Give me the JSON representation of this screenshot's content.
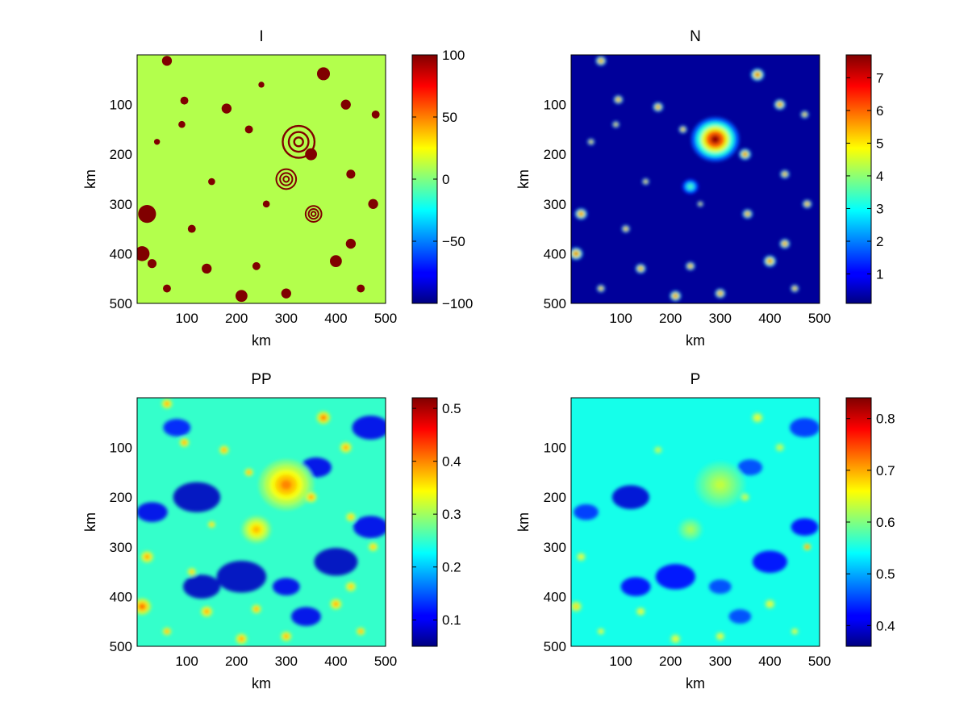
{
  "chart_data": [
    {
      "type": "heatmap",
      "title": "I",
      "xlabel": "km",
      "ylabel": "km",
      "xlim": [
        0,
        500
      ],
      "ylim": [
        500,
        0
      ],
      "x_ticks": [
        "100",
        "200",
        "300",
        "400",
        "500"
      ],
      "y_ticks": [
        "100",
        "200",
        "300",
        "400",
        "500"
      ],
      "colorbar": {
        "min": -100,
        "max": 100,
        "ticks": [
          "100",
          "50",
          "0",
          "−50",
          "−100"
        ]
      },
      "colormap": "jet",
      "pattern": "binary",
      "background_value": 10,
      "feature_value": 100,
      "features": [
        [
          325,
          175,
          32,
          "ring"
        ],
        [
          375,
          38,
          13
        ],
        [
          60,
          12,
          10
        ],
        [
          95,
          92,
          8
        ],
        [
          420,
          100,
          10
        ],
        [
          180,
          108,
          10
        ],
        [
          225,
          150,
          8
        ],
        [
          40,
          175,
          6
        ],
        [
          350,
          200,
          12
        ],
        [
          300,
          250,
          20,
          "ring"
        ],
        [
          355,
          320,
          16,
          "ring"
        ],
        [
          20,
          320,
          18
        ],
        [
          10,
          400,
          15
        ],
        [
          140,
          430,
          10
        ],
        [
          240,
          425,
          8
        ],
        [
          400,
          415,
          12
        ],
        [
          430,
          380,
          10
        ],
        [
          210,
          485,
          12
        ],
        [
          300,
          480,
          10
        ],
        [
          475,
          300,
          10
        ],
        [
          480,
          120,
          8
        ],
        [
          110,
          350,
          8
        ],
        [
          260,
          300,
          7
        ],
        [
          450,
          470,
          8
        ],
        [
          150,
          255,
          7
        ],
        [
          60,
          470,
          8
        ],
        [
          430,
          240,
          9
        ],
        [
          90,
          140,
          7
        ],
        [
          250,
          60,
          6
        ],
        [
          30,
          420,
          9
        ]
      ]
    },
    {
      "type": "heatmap",
      "title": "N",
      "xlabel": "km",
      "ylabel": "km",
      "xlim": [
        0,
        500
      ],
      "ylim": [
        500,
        0
      ],
      "x_ticks": [
        "100",
        "200",
        "300",
        "400",
        "500"
      ],
      "y_ticks": [
        "100",
        "200",
        "300",
        "400",
        "500"
      ],
      "colorbar": {
        "min": 0.1,
        "max": 7.7,
        "ticks": [
          "7",
          "6",
          "5",
          "4",
          "3",
          "2",
          "1"
        ]
      },
      "colormap": "jet",
      "pattern": "eddies-on-low-background",
      "background_value": 0.3,
      "features": [
        [
          290,
          170,
          48,
          7.5
        ],
        [
          375,
          40,
          13,
          7.2
        ],
        [
          60,
          12,
          10,
          7.2
        ],
        [
          95,
          90,
          9,
          7
        ],
        [
          420,
          100,
          11,
          7
        ],
        [
          175,
          105,
          10,
          6.8
        ],
        [
          225,
          150,
          8,
          6.8
        ],
        [
          40,
          175,
          7,
          6.5
        ],
        [
          350,
          200,
          12,
          6.5
        ],
        [
          240,
          265,
          16,
          3.5
        ],
        [
          355,
          320,
          10,
          6.5
        ],
        [
          20,
          320,
          12,
          6.8
        ],
        [
          10,
          400,
          13,
          7.2
        ],
        [
          140,
          430,
          10,
          7
        ],
        [
          240,
          425,
          9,
          6.8
        ],
        [
          400,
          415,
          12,
          7
        ],
        [
          430,
          380,
          10,
          6.8
        ],
        [
          210,
          485,
          11,
          7
        ],
        [
          300,
          480,
          10,
          7
        ],
        [
          475,
          300,
          9,
          6.8
        ],
        [
          470,
          120,
          8,
          6.5
        ],
        [
          110,
          350,
          8,
          6.8
        ],
        [
          260,
          300,
          6,
          6.5
        ],
        [
          450,
          470,
          8,
          6.8
        ],
        [
          150,
          255,
          7,
          6.5
        ],
        [
          60,
          470,
          8,
          6.8
        ],
        [
          430,
          240,
          9,
          6.5
        ],
        [
          90,
          140,
          7,
          6.5
        ]
      ]
    },
    {
      "type": "heatmap",
      "title": "PP",
      "xlabel": "km",
      "ylabel": "km",
      "xlim": [
        0,
        500
      ],
      "ylim": [
        500,
        0
      ],
      "x_ticks": [
        "100",
        "200",
        "300",
        "400",
        "500"
      ],
      "y_ticks": [
        "100",
        "200",
        "300",
        "400",
        "500"
      ],
      "colorbar": {
        "min": 0.05,
        "max": 0.52,
        "ticks": [
          "0.5",
          "0.4",
          "0.3",
          "0.2",
          "0.1"
        ]
      },
      "colormap": "jet",
      "pattern": "turbulent-mixed",
      "background_value": 0.25,
      "features": [
        [
          300,
          175,
          55,
          0.4
        ],
        [
          240,
          265,
          30,
          0.38
        ],
        [
          375,
          40,
          14,
          0.42
        ],
        [
          60,
          12,
          11,
          0.4
        ],
        [
          95,
          90,
          10,
          0.4
        ],
        [
          420,
          100,
          12,
          0.4
        ],
        [
          175,
          105,
          10,
          0.4
        ],
        [
          225,
          150,
          9,
          0.4
        ],
        [
          350,
          200,
          12,
          0.4
        ],
        [
          20,
          320,
          13,
          0.4
        ],
        [
          10,
          420,
          18,
          0.42
        ],
        [
          140,
          430,
          12,
          0.4
        ],
        [
          240,
          425,
          10,
          0.4
        ],
        [
          400,
          415,
          12,
          0.4
        ],
        [
          430,
          380,
          11,
          0.38
        ],
        [
          210,
          485,
          12,
          0.4
        ],
        [
          300,
          480,
          11,
          0.4
        ],
        [
          475,
          300,
          10,
          0.38
        ],
        [
          110,
          350,
          9,
          0.38
        ],
        [
          450,
          470,
          9,
          0.4
        ],
        [
          150,
          255,
          8,
          0.38
        ],
        [
          60,
          470,
          9,
          0.4
        ],
        [
          430,
          240,
          10,
          0.38
        ]
      ],
      "lows": [
        [
          120,
          200,
          38,
          0.08
        ],
        [
          210,
          360,
          40,
          0.08
        ],
        [
          400,
          330,
          35,
          0.08
        ],
        [
          130,
          380,
          30,
          0.08
        ],
        [
          470,
          60,
          30,
          0.1
        ],
        [
          360,
          140,
          25,
          0.1
        ],
        [
          30,
          230,
          25,
          0.1
        ],
        [
          470,
          260,
          28,
          0.1
        ],
        [
          300,
          380,
          22,
          0.1
        ],
        [
          340,
          440,
          24,
          0.1
        ],
        [
          80,
          60,
          22,
          0.12
        ]
      ]
    },
    {
      "type": "heatmap",
      "title": "P",
      "xlabel": "km",
      "ylabel": "km",
      "xlim": [
        0,
        500
      ],
      "ylim": [
        500,
        0
      ],
      "x_ticks": [
        "100",
        "200",
        "300",
        "400",
        "500"
      ],
      "y_ticks": [
        "100",
        "200",
        "300",
        "400",
        "500"
      ],
      "colorbar": {
        "min": 0.36,
        "max": 0.84,
        "ticks": [
          "0.8",
          "0.7",
          "0.6",
          "0.5",
          "0.4"
        ]
      },
      "colormap": "jet",
      "pattern": "turbulent-mixed",
      "background_value": 0.55,
      "features": [
        [
          300,
          175,
          50,
          0.63
        ],
        [
          240,
          265,
          25,
          0.62
        ],
        [
          375,
          40,
          12,
          0.66
        ],
        [
          420,
          100,
          10,
          0.64
        ],
        [
          175,
          105,
          9,
          0.64
        ],
        [
          350,
          200,
          10,
          0.64
        ],
        [
          20,
          320,
          10,
          0.66
        ],
        [
          140,
          430,
          10,
          0.66
        ],
        [
          400,
          415,
          11,
          0.66
        ],
        [
          210,
          485,
          11,
          0.66
        ],
        [
          300,
          480,
          10,
          0.66
        ],
        [
          450,
          470,
          8,
          0.66
        ],
        [
          60,
          470,
          8,
          0.66
        ],
        [
          10,
          420,
          12,
          0.68
        ],
        [
          475,
          300,
          8,
          0.75
        ]
      ],
      "lows": [
        [
          120,
          200,
          30,
          0.4
        ],
        [
          210,
          360,
          32,
          0.42
        ],
        [
          400,
          330,
          28,
          0.42
        ],
        [
          130,
          380,
          24,
          0.42
        ],
        [
          470,
          60,
          24,
          0.44
        ],
        [
          360,
          140,
          20,
          0.45
        ],
        [
          30,
          230,
          20,
          0.44
        ],
        [
          470,
          260,
          22,
          0.42
        ],
        [
          300,
          380,
          18,
          0.45
        ],
        [
          340,
          440,
          18,
          0.45
        ]
      ]
    }
  ]
}
